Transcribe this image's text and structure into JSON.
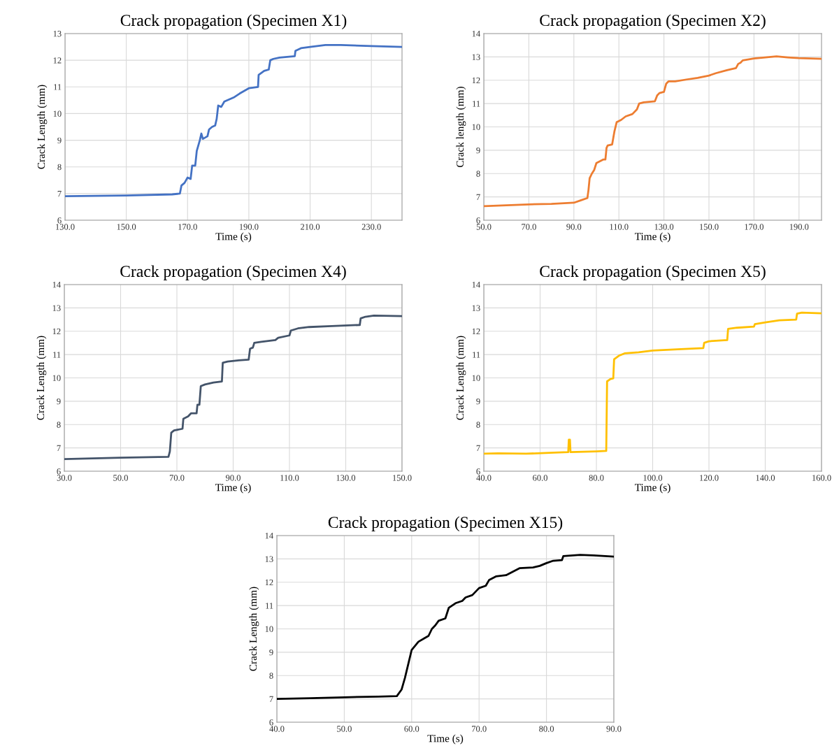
{
  "chart_data": [
    {
      "type": "line",
      "title": "Crack propagation (Specimen X1)",
      "xlabel": "Time (s)",
      "ylabel": "Crack Length (mm)",
      "grid": true,
      "marker": "none",
      "line_style": "solid",
      "xlim": [
        130,
        240
      ],
      "xticks": [
        {
          "value": 130,
          "label": "130.0"
        },
        {
          "value": 150,
          "label": "150.0"
        },
        {
          "value": 170,
          "label": "170.0"
        },
        {
          "value": 190,
          "label": "190.0"
        },
        {
          "value": 210,
          "label": "210.0"
        },
        {
          "value": 230,
          "label": "230.0"
        }
      ],
      "ylim": [
        6,
        13
      ],
      "yticks": [
        6,
        7,
        8,
        9,
        10,
        11,
        12,
        13
      ],
      "series": [
        {
          "color": "#4472c4",
          "x": [
            130,
            150,
            165,
            167.5,
            168,
            169,
            170,
            171,
            171.5,
            172.5,
            173,
            174,
            174.5,
            175,
            176.5,
            177,
            178,
            179,
            179.5,
            180,
            181,
            182,
            185,
            187,
            190,
            193,
            193.2,
            195,
            196.5,
            197,
            198,
            200,
            205,
            205.2,
            207,
            210,
            215,
            220,
            230,
            240
          ],
          "values": [
            6.9,
            6.93,
            6.97,
            7.0,
            7.3,
            7.4,
            7.6,
            7.55,
            8.05,
            8.05,
            8.6,
            9.0,
            9.25,
            9.05,
            9.15,
            9.4,
            9.5,
            9.55,
            9.8,
            10.3,
            10.25,
            10.45,
            10.6,
            10.75,
            10.95,
            11.0,
            11.45,
            11.6,
            11.65,
            12.0,
            12.05,
            12.1,
            12.15,
            12.35,
            12.45,
            12.5,
            12.57,
            12.57,
            12.53,
            12.5
          ]
        }
      ]
    },
    {
      "type": "line",
      "title": "Crack propagation (Specimen X2)",
      "xlabel": "Time (s)",
      "ylabel": "Crack length (mm)",
      "grid": true,
      "marker": "none",
      "line_style": "solid",
      "xlim": [
        50,
        200
      ],
      "xticks": [
        {
          "value": 50,
          "label": "50.0"
        },
        {
          "value": 70,
          "label": "70.0"
        },
        {
          "value": 90,
          "label": "90.0"
        },
        {
          "value": 110,
          "label": "110.0"
        },
        {
          "value": 130,
          "label": "130.0"
        },
        {
          "value": 150,
          "label": "150.0"
        },
        {
          "value": 170,
          "label": "170.0"
        },
        {
          "value": 190,
          "label": "190.0"
        }
      ],
      "ylim": [
        6,
        14
      ],
      "yticks": [
        6,
        7,
        8,
        9,
        10,
        11,
        12,
        13,
        14
      ],
      "series": [
        {
          "color": "#ed7d31",
          "x": [
            50,
            70,
            80,
            90,
            93,
            96,
            96.5,
            97,
            98,
            99,
            100,
            103,
            104,
            104.5,
            105,
            107,
            108,
            109,
            111,
            113,
            116,
            118,
            119,
            121,
            126,
            127,
            128,
            130,
            131,
            132,
            135,
            140,
            145,
            150,
            153,
            158,
            162,
            163,
            164,
            165,
            170,
            175,
            180,
            185,
            190,
            200
          ],
          "values": [
            6.6,
            6.68,
            6.7,
            6.75,
            6.85,
            6.95,
            7.3,
            7.8,
            8.0,
            8.15,
            8.45,
            8.6,
            8.6,
            9.1,
            9.2,
            9.25,
            9.8,
            10.2,
            10.3,
            10.45,
            10.55,
            10.75,
            11.0,
            11.05,
            11.1,
            11.35,
            11.45,
            11.5,
            11.85,
            11.95,
            11.95,
            12.03,
            12.1,
            12.2,
            12.3,
            12.43,
            12.52,
            12.7,
            12.75,
            12.85,
            12.93,
            12.98,
            13.02,
            12.98,
            12.95,
            12.92
          ]
        }
      ]
    },
    {
      "type": "line",
      "title": "Crack propagation (Specimen X4)",
      "xlabel": "Time (s)",
      "ylabel": "Crack Length (mm)",
      "grid": true,
      "marker": "none",
      "line_style": "solid",
      "xlim": [
        30,
        150
      ],
      "xticks": [
        {
          "value": 30,
          "label": "30.0"
        },
        {
          "value": 50,
          "label": "50.0"
        },
        {
          "value": 70,
          "label": "70.0"
        },
        {
          "value": 90,
          "label": "90.0"
        },
        {
          "value": 110,
          "label": "110.0"
        },
        {
          "value": 130,
          "label": "130.0"
        },
        {
          "value": 150,
          "label": "150.0"
        }
      ],
      "ylim": [
        6,
        14
      ],
      "yticks": [
        6,
        7,
        8,
        9,
        10,
        11,
        12,
        13,
        14
      ],
      "series": [
        {
          "color": "#44546a",
          "x": [
            30,
            50,
            60,
            67,
            67.5,
            68,
            69,
            72,
            72.3,
            74,
            75,
            77,
            77.3,
            78,
            78.5,
            80,
            83,
            86,
            86.3,
            88,
            92,
            95.5,
            96,
            97,
            97.5,
            100,
            105,
            106,
            110,
            110.5,
            113,
            117,
            125,
            135,
            135.3,
            137,
            140,
            150
          ],
          "values": [
            6.52,
            6.58,
            6.6,
            6.62,
            6.85,
            7.65,
            7.75,
            7.82,
            8.25,
            8.35,
            8.48,
            8.48,
            8.85,
            8.85,
            9.65,
            9.72,
            9.8,
            9.85,
            10.65,
            10.7,
            10.75,
            10.78,
            11.25,
            11.3,
            11.5,
            11.55,
            11.62,
            11.72,
            11.82,
            12.03,
            12.12,
            12.18,
            12.22,
            12.27,
            12.55,
            12.62,
            12.67,
            12.65
          ]
        }
      ]
    },
    {
      "type": "line",
      "title": "Crack propagation (Specimen X5)",
      "xlabel": "Time (s)",
      "ylabel": "Crack Length (mm)",
      "grid": true,
      "marker": "none",
      "line_style": "solid",
      "xlim": [
        40,
        160
      ],
      "xticks": [
        {
          "value": 40,
          "label": "40.0"
        },
        {
          "value": 60,
          "label": "60.0"
        },
        {
          "value": 80,
          "label": "80.0"
        },
        {
          "value": 100,
          "label": "100.0"
        },
        {
          "value": 120,
          "label": "120.0"
        },
        {
          "value": 140,
          "label": "140.0"
        },
        {
          "value": 160,
          "label": "160.0"
        }
      ],
      "ylim": [
        6,
        14
      ],
      "yticks": [
        6,
        7,
        8,
        9,
        10,
        11,
        12,
        13,
        14
      ],
      "series": [
        {
          "color": "#ffc000",
          "x": [
            40,
            45,
            55,
            65,
            70,
            70.2,
            70.6,
            70.8,
            80,
            83.5,
            83.8,
            85,
            86,
            86.3,
            88,
            90,
            95,
            100,
            110,
            118,
            118.3,
            120,
            126.5,
            126.8,
            130,
            136,
            136.3,
            140,
            145,
            151,
            151.3,
            153,
            160
          ],
          "values": [
            6.75,
            6.77,
            6.75,
            6.8,
            6.82,
            7.35,
            7.35,
            6.82,
            6.85,
            6.87,
            9.85,
            9.95,
            9.98,
            10.8,
            10.95,
            11.05,
            11.1,
            11.17,
            11.23,
            11.28,
            11.5,
            11.57,
            11.62,
            12.1,
            12.15,
            12.2,
            12.3,
            12.38,
            12.47,
            12.5,
            12.75,
            12.8,
            12.77
          ]
        }
      ]
    },
    {
      "type": "line",
      "title": "Crack propagation (Specimen X15)",
      "xlabel": "Time (s)",
      "ylabel": "Crack Length (mm)",
      "grid": true,
      "marker": "none",
      "line_style": "solid",
      "xlim": [
        40,
        90
      ],
      "xticks": [
        {
          "value": 40,
          "label": "40.0"
        },
        {
          "value": 50,
          "label": "50.0"
        },
        {
          "value": 60,
          "label": "60.0"
        },
        {
          "value": 70,
          "label": "70.0"
        },
        {
          "value": 80,
          "label": "80.0"
        },
        {
          "value": 90,
          "label": "90.0"
        }
      ],
      "ylim": [
        6,
        14
      ],
      "yticks": [
        6,
        7,
        8,
        9,
        10,
        11,
        12,
        13,
        14
      ],
      "series": [
        {
          "color": "#000000",
          "x": [
            40,
            45,
            50,
            55,
            57.8,
            58.5,
            59,
            59.5,
            60,
            61,
            62,
            62.5,
            63,
            63.5,
            64,
            65,
            65.5,
            66.5,
            67.5,
            68,
            69,
            70,
            71,
            71.5,
            72.5,
            74,
            75,
            76,
            78,
            79,
            80,
            81,
            82.3,
            82.5,
            85,
            87,
            90
          ],
          "values": [
            7.0,
            7.03,
            7.07,
            7.1,
            7.12,
            7.4,
            7.9,
            8.5,
            9.1,
            9.45,
            9.62,
            9.7,
            10.0,
            10.15,
            10.35,
            10.45,
            10.9,
            11.1,
            11.2,
            11.35,
            11.45,
            11.75,
            11.85,
            12.1,
            12.25,
            12.3,
            12.45,
            12.6,
            12.63,
            12.7,
            12.82,
            12.92,
            12.95,
            13.12,
            13.17,
            13.15,
            13.1
          ]
        }
      ]
    }
  ]
}
